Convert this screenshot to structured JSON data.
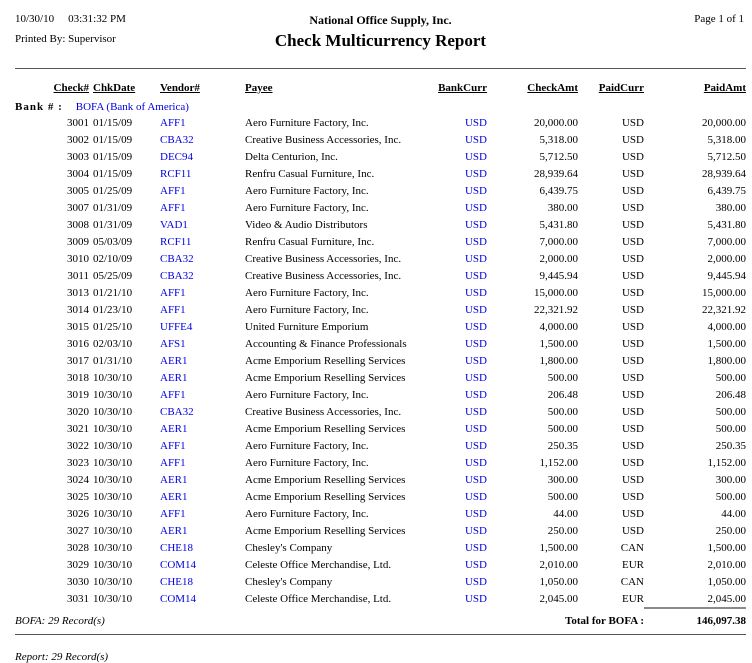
{
  "report": {
    "date": "10/30/10",
    "time": "03:31:32 PM",
    "printed_by": "Printed By: Supervisor",
    "company": "National Office Supply, Inc.",
    "title": "Check Multicurrency Report",
    "page": "Page 1 of 1"
  },
  "colors": {
    "link_blue": "#0000E0"
  },
  "table": {
    "columns": [
      "Check#",
      "ChkDate",
      "Vendor#",
      "Payee",
      "BankCurr",
      "CheckAmt",
      "PaidCurr",
      "PaidAmt"
    ],
    "bank_label": "Bank # :",
    "bank_value": "BOFA (Bank of America)",
    "rows": [
      {
        "check_no": "3001",
        "chk_date": "01/15/09",
        "vendor_no": "AFF1",
        "payee": "Aero Furniture Factory, Inc.",
        "bank_curr": "USD",
        "check_amt": "20,000.00",
        "paid_curr": "USD",
        "paid_amt": "20,000.00"
      },
      {
        "check_no": "3002",
        "chk_date": "01/15/09",
        "vendor_no": "CBA32",
        "payee": "Creative Business Accessories, Inc.",
        "bank_curr": "USD",
        "check_amt": "5,318.00",
        "paid_curr": "USD",
        "paid_amt": "5,318.00"
      },
      {
        "check_no": "3003",
        "chk_date": "01/15/09",
        "vendor_no": "DEC94",
        "payee": "Delta Centurion, Inc.",
        "bank_curr": "USD",
        "check_amt": "5,712.50",
        "paid_curr": "USD",
        "paid_amt": "5,712.50"
      },
      {
        "check_no": "3004",
        "chk_date": "01/15/09",
        "vendor_no": "RCF11",
        "payee": "Renfru Casual Furniture, Inc.",
        "bank_curr": "USD",
        "check_amt": "28,939.64",
        "paid_curr": "USD",
        "paid_amt": "28,939.64"
      },
      {
        "check_no": "3005",
        "chk_date": "01/25/09",
        "vendor_no": "AFF1",
        "payee": "Aero Furniture Factory, Inc.",
        "bank_curr": "USD",
        "check_amt": "6,439.75",
        "paid_curr": "USD",
        "paid_amt": "6,439.75"
      },
      {
        "check_no": "3007",
        "chk_date": "01/31/09",
        "vendor_no": "AFF1",
        "payee": "Aero Furniture Factory, Inc.",
        "bank_curr": "USD",
        "check_amt": "380.00",
        "paid_curr": "USD",
        "paid_amt": "380.00"
      },
      {
        "check_no": "3008",
        "chk_date": "01/31/09",
        "vendor_no": "VAD1",
        "payee": "Video & Audio Distributors",
        "bank_curr": "USD",
        "check_amt": "5,431.80",
        "paid_curr": "USD",
        "paid_amt": "5,431.80"
      },
      {
        "check_no": "3009",
        "chk_date": "05/03/09",
        "vendor_no": "RCF11",
        "payee": "Renfru Casual Furniture, Inc.",
        "bank_curr": "USD",
        "check_amt": "7,000.00",
        "paid_curr": "USD",
        "paid_amt": "7,000.00"
      },
      {
        "check_no": "3010",
        "chk_date": "02/10/09",
        "vendor_no": "CBA32",
        "payee": "Creative Business Accessories, Inc.",
        "bank_curr": "USD",
        "check_amt": "2,000.00",
        "paid_curr": "USD",
        "paid_amt": "2,000.00"
      },
      {
        "check_no": "3011",
        "chk_date": "05/25/09",
        "vendor_no": "CBA32",
        "payee": "Creative Business Accessories, Inc.",
        "bank_curr": "USD",
        "check_amt": "9,445.94",
        "paid_curr": "USD",
        "paid_amt": "9,445.94"
      },
      {
        "check_no": "3013",
        "chk_date": "01/21/10",
        "vendor_no": "AFF1",
        "payee": "Aero Furniture Factory, Inc.",
        "bank_curr": "USD",
        "check_amt": "15,000.00",
        "paid_curr": "USD",
        "paid_amt": "15,000.00"
      },
      {
        "check_no": "3014",
        "chk_date": "01/23/10",
        "vendor_no": "AFF1",
        "payee": "Aero Furniture Factory, Inc.",
        "bank_curr": "USD",
        "check_amt": "22,321.92",
        "paid_curr": "USD",
        "paid_amt": "22,321.92"
      },
      {
        "check_no": "3015",
        "chk_date": "01/25/10",
        "vendor_no": "UFFE4",
        "payee": "United Furniture Emporium",
        "bank_curr": "USD",
        "check_amt": "4,000.00",
        "paid_curr": "USD",
        "paid_amt": "4,000.00"
      },
      {
        "check_no": "3016",
        "chk_date": "02/03/10",
        "vendor_no": "AFS1",
        "payee": "Accounting & Finance Professionals",
        "bank_curr": "USD",
        "check_amt": "1,500.00",
        "paid_curr": "USD",
        "paid_amt": "1,500.00"
      },
      {
        "check_no": "3017",
        "chk_date": "01/31/10",
        "vendor_no": "AER1",
        "payee": "Acme Emporium Reselling Services",
        "bank_curr": "USD",
        "check_amt": "1,800.00",
        "paid_curr": "USD",
        "paid_amt": "1,800.00"
      },
      {
        "check_no": "3018",
        "chk_date": "10/30/10",
        "vendor_no": "AER1",
        "payee": "Acme Emporium Reselling Services",
        "bank_curr": "USD",
        "check_amt": "500.00",
        "paid_curr": "USD",
        "paid_amt": "500.00"
      },
      {
        "check_no": "3019",
        "chk_date": "10/30/10",
        "vendor_no": "AFF1",
        "payee": "Aero Furniture Factory, Inc.",
        "bank_curr": "USD",
        "check_amt": "206.48",
        "paid_curr": "USD",
        "paid_amt": "206.48"
      },
      {
        "check_no": "3020",
        "chk_date": "10/30/10",
        "vendor_no": "CBA32",
        "payee": "Creative Business Accessories, Inc.",
        "bank_curr": "USD",
        "check_amt": "500.00",
        "paid_curr": "USD",
        "paid_amt": "500.00"
      },
      {
        "check_no": "3021",
        "chk_date": "10/30/10",
        "vendor_no": "AER1",
        "payee": "Acme Emporium Reselling Services",
        "bank_curr": "USD",
        "check_amt": "500.00",
        "paid_curr": "USD",
        "paid_amt": "500.00"
      },
      {
        "check_no": "3022",
        "chk_date": "10/30/10",
        "vendor_no": "AFF1",
        "payee": "Aero Furniture Factory, Inc.",
        "bank_curr": "USD",
        "check_amt": "250.35",
        "paid_curr": "USD",
        "paid_amt": "250.35"
      },
      {
        "check_no": "3023",
        "chk_date": "10/30/10",
        "vendor_no": "AFF1",
        "payee": "Aero Furniture Factory, Inc.",
        "bank_curr": "USD",
        "check_amt": "1,152.00",
        "paid_curr": "USD",
        "paid_amt": "1,152.00"
      },
      {
        "check_no": "3024",
        "chk_date": "10/30/10",
        "vendor_no": "AER1",
        "payee": "Acme Emporium Reselling Services",
        "bank_curr": "USD",
        "check_amt": "300.00",
        "paid_curr": "USD",
        "paid_amt": "300.00"
      },
      {
        "check_no": "3025",
        "chk_date": "10/30/10",
        "vendor_no": "AER1",
        "payee": "Acme Emporium Reselling Services",
        "bank_curr": "USD",
        "check_amt": "500.00",
        "paid_curr": "USD",
        "paid_amt": "500.00"
      },
      {
        "check_no": "3026",
        "chk_date": "10/30/10",
        "vendor_no": "AFF1",
        "payee": "Aero Furniture Factory, Inc.",
        "bank_curr": "USD",
        "check_amt": "44.00",
        "paid_curr": "USD",
        "paid_amt": "44.00"
      },
      {
        "check_no": "3027",
        "chk_date": "10/30/10",
        "vendor_no": "AER1",
        "payee": "Acme Emporium Reselling Services",
        "bank_curr": "USD",
        "check_amt": "250.00",
        "paid_curr": "USD",
        "paid_amt": "250.00"
      },
      {
        "check_no": "3028",
        "chk_date": "10/30/10",
        "vendor_no": "CHE18",
        "payee": "Chesley's Company",
        "bank_curr": "USD",
        "check_amt": "1,500.00",
        "paid_curr": "CAN",
        "paid_amt": "1,500.00"
      },
      {
        "check_no": "3029",
        "chk_date": "10/30/10",
        "vendor_no": "COM14",
        "payee": "Celeste Office Merchandise, Ltd.",
        "bank_curr": "USD",
        "check_amt": "2,010.00",
        "paid_curr": "EUR",
        "paid_amt": "2,010.00"
      },
      {
        "check_no": "3030",
        "chk_date": "10/30/10",
        "vendor_no": "CHE18",
        "payee": "Chesley's Company",
        "bank_curr": "USD",
        "check_amt": "1,050.00",
        "paid_curr": "CAN",
        "paid_amt": "1,050.00"
      },
      {
        "check_no": "3031",
        "chk_date": "10/30/10",
        "vendor_no": "COM14",
        "payee": "Celeste Office Merchandise, Ltd.",
        "bank_curr": "USD",
        "check_amt": "2,045.00",
        "paid_curr": "EUR",
        "paid_amt": "2,045.00"
      }
    ],
    "bank_records": "BOFA: 29 Record(s)",
    "total_label": "Total for BOFA :",
    "total_value": "146,097.38"
  },
  "footer": {
    "report_records": "Report: 29 Record(s)"
  }
}
